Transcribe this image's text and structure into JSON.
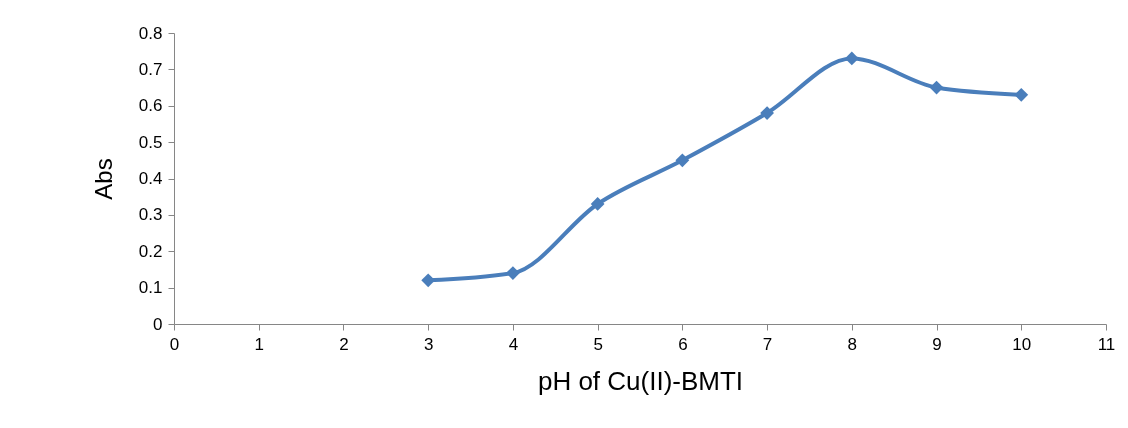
{
  "chart_data": {
    "type": "line",
    "xlabel": "pH of Cu(II)-BMTI",
    "ylabel": "Abs",
    "x": [
      3,
      4,
      5,
      6,
      7,
      8,
      9,
      10
    ],
    "series": [
      {
        "color": "#4a7ebb",
        "values": [
          0.12,
          0.14,
          0.33,
          0.45,
          0.58,
          0.73,
          0.65,
          0.63
        ]
      }
    ],
    "xlim": [
      0,
      11
    ],
    "xticks": [
      0,
      1,
      2,
      3,
      4,
      5,
      6,
      7,
      8,
      9,
      10,
      11
    ],
    "ylim": [
      0,
      0.8
    ],
    "yticks": [
      0,
      0.1,
      0.2,
      0.3,
      0.4,
      0.5,
      0.6,
      0.7,
      0.8
    ],
    "grid": false,
    "marker": "diamond",
    "line_style": "solid"
  }
}
